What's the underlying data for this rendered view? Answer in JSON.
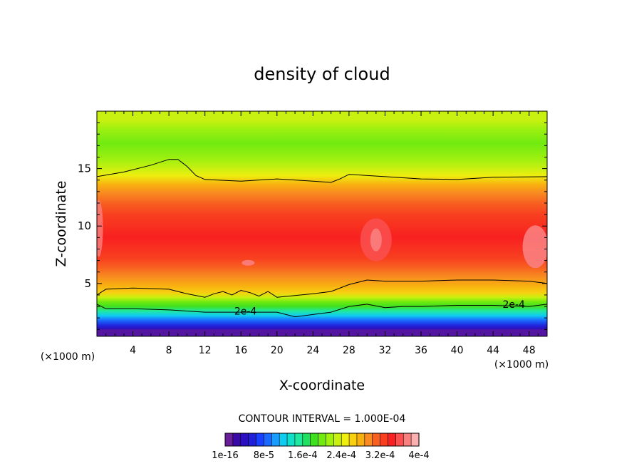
{
  "chart_data": {
    "type": "contour",
    "title": "density of cloud",
    "xlabel": "X-coordinate",
    "ylabel": "Z-coordinate",
    "x_unit": "(×1000 m)",
    "xlim": [
      0,
      50
    ],
    "ylim": [
      0.4,
      20
    ],
    "x_ticks": [
      4,
      8,
      12,
      16,
      20,
      24,
      28,
      32,
      36,
      40,
      44,
      48
    ],
    "y_ticks": [
      5,
      10,
      15
    ],
    "contour_interval_text": "CONTOUR INTERVAL = 1.000E-04",
    "contour_labels": [
      {
        "text": "2e-4",
        "x": 16.5,
        "z": 2.6
      },
      {
        "text": "2e-4",
        "x": 46.3,
        "z": 3.2
      }
    ],
    "contour_lines": [
      {
        "level": "upper",
        "points": [
          [
            0,
            14.3
          ],
          [
            3,
            14.7
          ],
          [
            6,
            15.3
          ],
          [
            8,
            15.8
          ],
          [
            9,
            15.8
          ],
          [
            10,
            15.2
          ],
          [
            11,
            14.4
          ],
          [
            12,
            14.05
          ],
          [
            16,
            13.9
          ],
          [
            20,
            14.1
          ],
          [
            24,
            13.9
          ],
          [
            26,
            13.8
          ],
          [
            27,
            14.1
          ],
          [
            28,
            14.5
          ],
          [
            32,
            14.3
          ],
          [
            36,
            14.1
          ],
          [
            40,
            14.05
          ],
          [
            44,
            14.25
          ],
          [
            50,
            14.3
          ]
        ]
      },
      {
        "level": "mid",
        "points": [
          [
            0,
            4.0
          ],
          [
            1,
            4.5
          ],
          [
            4,
            4.6
          ],
          [
            8,
            4.5
          ],
          [
            10,
            4.1
          ],
          [
            12,
            3.8
          ],
          [
            13,
            4.1
          ],
          [
            14,
            4.3
          ],
          [
            15,
            4.0
          ],
          [
            16,
            4.4
          ],
          [
            17,
            4.2
          ],
          [
            18,
            3.9
          ],
          [
            19,
            4.3
          ],
          [
            20,
            3.8
          ],
          [
            24,
            4.1
          ],
          [
            26,
            4.3
          ],
          [
            28,
            4.9
          ],
          [
            30,
            5.3
          ],
          [
            32,
            5.2
          ],
          [
            36,
            5.2
          ],
          [
            40,
            5.3
          ],
          [
            44,
            5.3
          ],
          [
            48,
            5.2
          ],
          [
            50,
            5.0
          ]
        ]
      },
      {
        "level": "2e-4",
        "points": [
          [
            0,
            3.2
          ],
          [
            1,
            2.8
          ],
          [
            4,
            2.8
          ],
          [
            8,
            2.7
          ],
          [
            12,
            2.5
          ],
          [
            16,
            2.5
          ],
          [
            20,
            2.5
          ],
          [
            22,
            2.1
          ],
          [
            24,
            2.3
          ],
          [
            26,
            2.5
          ],
          [
            28,
            3.0
          ],
          [
            30,
            3.2
          ],
          [
            32,
            2.9
          ],
          [
            34,
            3.0
          ],
          [
            36,
            3.0
          ],
          [
            40,
            3.1
          ],
          [
            44,
            3.1
          ],
          [
            48,
            3.0
          ],
          [
            50,
            3.2
          ]
        ]
      }
    ],
    "colorbar": {
      "colors": [
        "#6a1f9a",
        "#3a0aa8",
        "#2a10c0",
        "#2020d8",
        "#1a40ff",
        "#1a6aff",
        "#1a9cff",
        "#10ccf0",
        "#10e0c8",
        "#20e8a0",
        "#20e060",
        "#40e020",
        "#70ea10",
        "#a0f010",
        "#c8f010",
        "#eeee10",
        "#f8d010",
        "#f8b010",
        "#f88c20",
        "#f86020",
        "#f84020",
        "#f82020",
        "#fa5050",
        "#fa8080",
        "#fab0b0"
      ],
      "tick_labels": [
        "1e-16",
        "8e-5",
        "1.6e-4",
        "2.4e-4",
        "3.2e-4",
        "4e-4"
      ]
    },
    "layers": [
      {
        "z": 19.2,
        "color": "#c8f010"
      },
      {
        "z": 18.5,
        "color": "#a0f010"
      },
      {
        "z": 17.2,
        "color": "#70ea10"
      },
      {
        "z": 15.8,
        "color": "#a0f010"
      },
      {
        "z": 15.0,
        "color": "#c8f010"
      },
      {
        "z": 14.4,
        "color": "#eeee10"
      },
      {
        "z": 13.6,
        "color": "#f8b010"
      },
      {
        "z": 12.9,
        "color": "#f88c20"
      },
      {
        "z": 12.0,
        "color": "#f86020"
      },
      {
        "z": 11.0,
        "color": "#f84020"
      },
      {
        "z": 9.0,
        "color": "#f82020"
      },
      {
        "z": 7.2,
        "color": "#f84020"
      },
      {
        "z": 6.4,
        "color": "#f86020"
      },
      {
        "z": 5.6,
        "color": "#f88c20"
      },
      {
        "z": 4.8,
        "color": "#f8b010"
      },
      {
        "z": 4.2,
        "color": "#f8d010"
      },
      {
        "z": 3.8,
        "color": "#c8f010"
      },
      {
        "z": 3.4,
        "color": "#70ea10"
      },
      {
        "z": 3.0,
        "color": "#40e020"
      },
      {
        "z": 2.6,
        "color": "#20e8a0"
      },
      {
        "z": 2.2,
        "color": "#10ccf0"
      },
      {
        "z": 1.8,
        "color": "#1a6aff"
      },
      {
        "z": 1.3,
        "color": "#2020d8"
      },
      {
        "z": 0.9,
        "color": "#3a0aa8"
      }
    ]
  }
}
